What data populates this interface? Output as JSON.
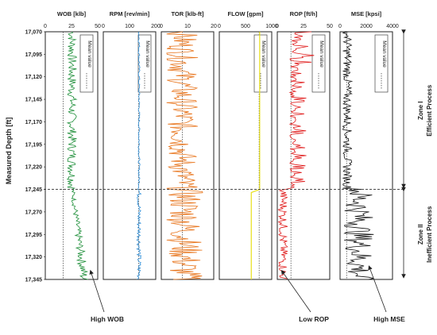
{
  "chart_data": {
    "type": "line",
    "title": "",
    "ylabel": "Measured Depth [ft]",
    "y_ticks": [
      "17,070",
      "17,095",
      "17,120",
      "17,145",
      "17,170",
      "17,195",
      "17,220",
      "17,245",
      "17,270",
      "17,295",
      "17,320",
      "17,345"
    ],
    "ylim": [
      17070,
      17345
    ],
    "y_inverted": true,
    "tracks": [
      {
        "title": "WOB [klb]",
        "ticks": [
          "0",
          "25",
          "50"
        ],
        "xlim": [
          0,
          50
        ],
        "color": "#1f8f3a",
        "mean_value": 17,
        "legend": "Mean value",
        "x_low": 21,
        "x_high": 30,
        "x_low_b": 24,
        "x_high_b": 40
      },
      {
        "title": "RPM [rev/min]",
        "ticks": [
          "0",
          "100",
          "200"
        ],
        "xlim": [
          0,
          200
        ],
        "color": "#2f8fd8",
        "mean_value": 135,
        "legend": "Mean value",
        "x_low": 133,
        "x_high": 140,
        "x_low_b": 128,
        "x_high_b": 145
      },
      {
        "title": "TOR [klb-ft]",
        "ticks": [
          "0",
          "10",
          "20"
        ],
        "xlim": [
          0,
          20
        ],
        "color": "#e8741b",
        "mean_value": 8,
        "legend": "",
        "x_low": 2,
        "x_high": 14,
        "x_low_b": 2,
        "x_high_b": 16
      },
      {
        "title": "FLOW [gpm]",
        "ticks": [
          "0",
          "500",
          "1000"
        ],
        "xlim": [
          0,
          1000
        ],
        "color": "#e8e01b",
        "mean_value": 760,
        "legend": "Mean value",
        "x_low": 770,
        "x_high": 775,
        "x_low_b": 610,
        "x_high_b": 615
      },
      {
        "title": "ROP [ft/h]",
        "ticks": [
          "0",
          "25",
          "50"
        ],
        "xlim": [
          0,
          50
        ],
        "color": "#e01b1b",
        "mean_value": 13,
        "legend": "Mean value",
        "x_low": 12,
        "x_high": 32,
        "x_low_b": 1,
        "x_high_b": 10
      },
      {
        "title": "MSE [kpsi]",
        "ticks": [
          "0",
          "2000",
          "4000"
        ],
        "xlim": [
          0,
          4000
        ],
        "color": "#111111",
        "mean_value": 500,
        "legend": "Mean value",
        "x_low": 200,
        "x_high": 900,
        "x_low_b": 300,
        "x_high_b": 2600
      }
    ],
    "zone_boundary_depth": 17245,
    "zones": [
      {
        "label1": "Zone I",
        "label2": "Efficient Process"
      },
      {
        "label1": "Zone II",
        "label2": "Inefficient Process"
      }
    ],
    "annotations": [
      {
        "text": "High WOB",
        "target_track": 0,
        "target_x": 43,
        "target_depth": 17335
      },
      {
        "text": "Low ROP",
        "target_track": 4,
        "target_x": 4,
        "target_depth": 17335
      },
      {
        "text": "High MSE",
        "target_track": 5,
        "target_x": 2200,
        "target_depth": 17330
      }
    ]
  }
}
